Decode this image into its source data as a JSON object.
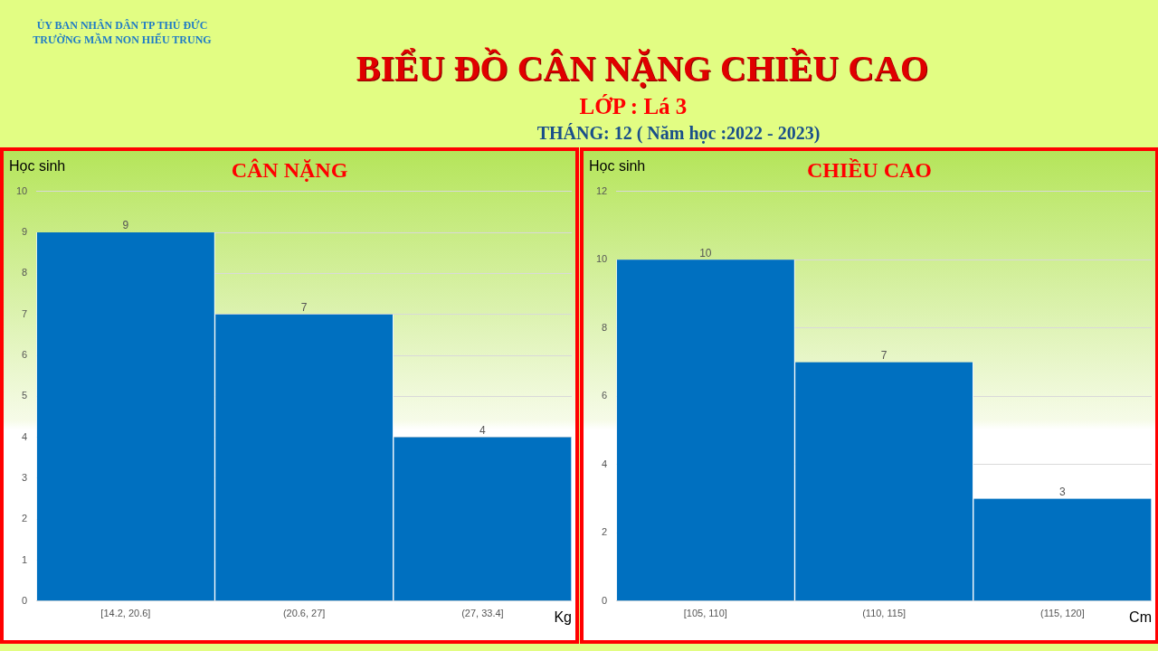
{
  "chart_data": [
    {
      "type": "other",
      "title": "BIỂU ĐỒ CÂN NẶNG CHIỀU CAO",
      "subtitle": "LỚP : Lá 3",
      "annotations": [
        "ỦY BAN NHÂN DÂN TP THỦ ĐỨC",
        "TRƯỜNG MẦM NON HIẾU TRUNG",
        "THÁNG: 12 ( Năm học :2022 - 2023)"
      ]
    },
    {
      "type": "bar",
      "title": "CÂN NẶNG",
      "xlabel": "Kg",
      "ylabel": "Học sinh",
      "categories": [
        "[14.2, 20.6]",
        "(20.6, 27]",
        "(27, 33.4]"
      ],
      "values": [
        9,
        7,
        4
      ],
      "color": "#0070c0",
      "ylim": [
        0,
        10
      ],
      "yticks": [
        0,
        1,
        2,
        3,
        4,
        5,
        6,
        7,
        8,
        9,
        10
      ],
      "grid": "y",
      "data_labels": true
    },
    {
      "type": "bar",
      "title": "CHIỀU CAO",
      "xlabel": "Cm",
      "ylabel": "Học sinh",
      "categories": [
        "[105, 110]",
        "(110, 115]",
        "(115, 120]"
      ],
      "values": [
        10,
        7,
        3
      ],
      "color": "#0070c0",
      "ylim": [
        0,
        12
      ],
      "yticks": [
        0,
        2,
        4,
        6,
        8,
        10,
        12
      ],
      "grid": "y",
      "data_labels": true
    }
  ]
}
